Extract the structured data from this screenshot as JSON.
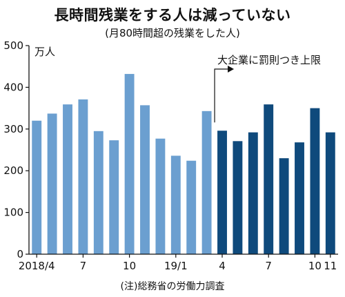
{
  "title": "長時間残業をする人は減っていない",
  "subtitle": "(月80時間超の残業をした人)",
  "note": "(注)総務省の労働力調査",
  "colors": {
    "light_bar": "#6b9fd0",
    "dark_bar": "#0f4a7c",
    "axis": "#111111"
  },
  "chart_data": {
    "type": "bar",
    "title": "長時間残業をする人は減っていない",
    "subtitle": "(月80時間超の残業をした人)",
    "ylabel": "万人",
    "ylim": [
      0,
      500
    ],
    "yticks": [
      0,
      100,
      200,
      300,
      400,
      500
    ],
    "categories": [
      "2018/4",
      "2018/5",
      "2018/6",
      "2018/7",
      "2018/8",
      "2018/9",
      "2018/10",
      "2018/11",
      "2018/12",
      "2019/1",
      "2019/2",
      "2019/3",
      "2019/4",
      "2019/5",
      "2019/6",
      "2019/7",
      "2019/8",
      "2019/9",
      "2019/10",
      "2019/11"
    ],
    "x_tick_labels": [
      {
        "index": 0,
        "text": "2018/4"
      },
      {
        "index": 3,
        "text": "7"
      },
      {
        "index": 6,
        "text": "10"
      },
      {
        "index": 9,
        "text": "19/1"
      },
      {
        "index": 12,
        "text": "4"
      },
      {
        "index": 15,
        "text": "7"
      },
      {
        "index": 18,
        "text": "10"
      },
      {
        "index": 19,
        "text": "11"
      }
    ],
    "values": [
      320,
      337,
      359,
      371,
      295,
      273,
      432,
      357,
      277,
      236,
      224,
      343,
      296,
      271,
      292,
      359,
      230,
      268,
      350,
      292
    ],
    "highlight_from_index": 12,
    "annotation": {
      "text": "大企業に罰則つき上限",
      "at_index": 12
    },
    "grid": false
  }
}
